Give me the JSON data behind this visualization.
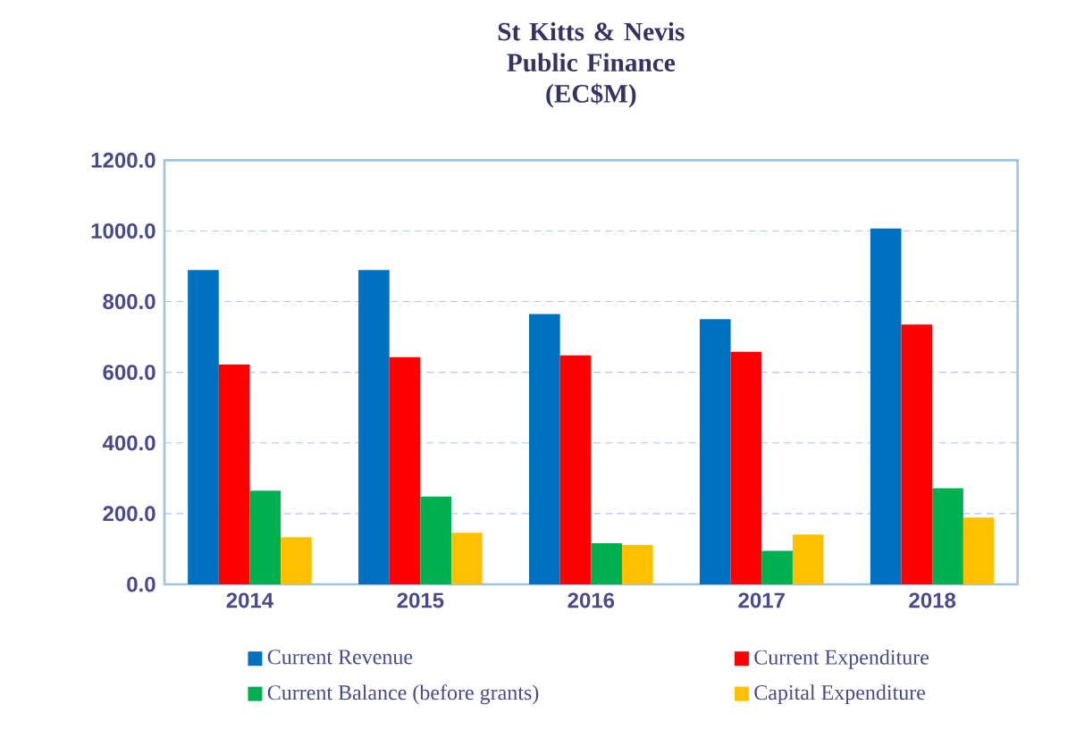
{
  "chart_data": {
    "type": "bar",
    "title": "St Kitts & Nevis Public Finance",
    "subtitle": "(EC$M)",
    "categories": [
      "2014",
      "2015",
      "2016",
      "2017",
      "2018"
    ],
    "series": [
      {
        "name": "Current Revenue",
        "color": "#0070c0",
        "values": [
          889,
          889,
          765,
          750,
          1007
        ]
      },
      {
        "name": "Current Expenditure",
        "color": "#ff0000",
        "values": [
          622,
          643,
          648,
          658,
          735
        ]
      },
      {
        "name": "Current Balance (before grants)",
        "color": "#00b050",
        "values": [
          265,
          248,
          116,
          95,
          272
        ]
      },
      {
        "name": "Capital Expenditure",
        "color": "#ffc000",
        "values": [
          133,
          146,
          111,
          141,
          189
        ]
      }
    ],
    "ylim": [
      0,
      1200
    ],
    "yticks": [
      {
        "value": 0,
        "label": "0.0"
      },
      {
        "value": 200,
        "label": "200.0"
      },
      {
        "value": 400,
        "label": "400.0"
      },
      {
        "value": 600,
        "label": "600.0"
      },
      {
        "value": 800,
        "label": "800.0"
      },
      {
        "value": 1000,
        "label": "1000.0"
      },
      {
        "value": 1200,
        "label": "1200.0"
      }
    ],
    "grid": "y",
    "legend": "bottom"
  }
}
